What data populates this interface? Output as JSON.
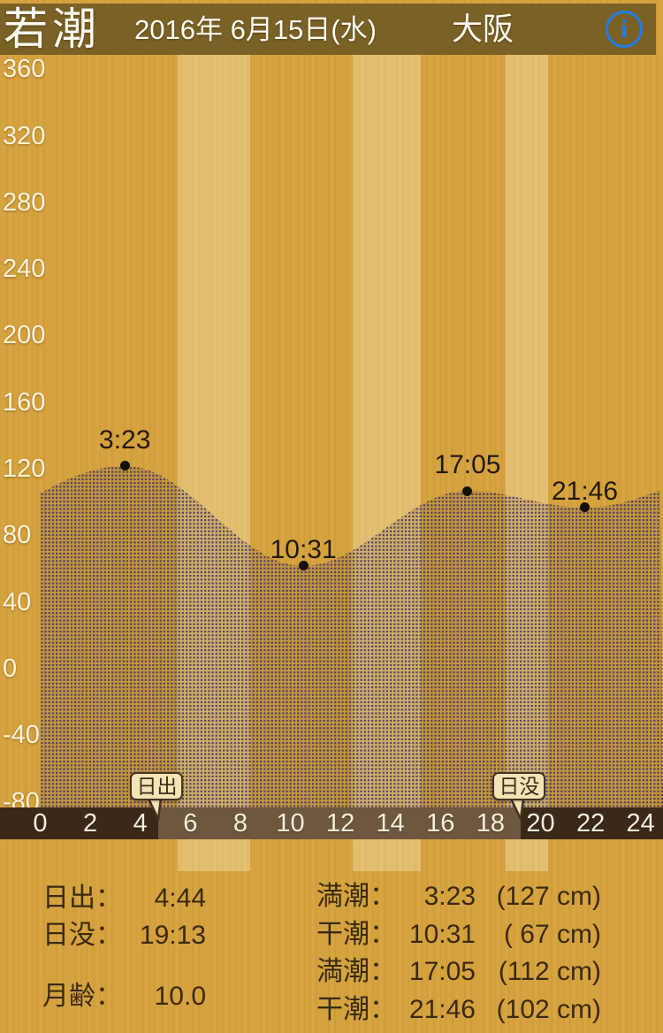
{
  "header": {
    "tide_phase": "若潮",
    "date": "2016年 6月15日(水)",
    "city": "大阪",
    "info_glyph": "i"
  },
  "chart_data": {
    "type": "area",
    "title": "tide level curve (cm) over 24 hours",
    "y_unit": "cm",
    "y_ticks": [
      360,
      320,
      280,
      240,
      200,
      160,
      120,
      80,
      40,
      0,
      -40,
      -80
    ],
    "x_ticks": [
      0,
      2,
      4,
      6,
      8,
      10,
      12,
      14,
      16,
      18,
      20,
      22,
      24
    ],
    "x_range_hours": [
      0,
      24
    ],
    "extremes": [
      {
        "kind": "high",
        "label": "満潮",
        "time": "3:23",
        "hour": 3.383,
        "cm": 127
      },
      {
        "kind": "low",
        "label": "干潮",
        "time": "10:31",
        "hour": 10.517,
        "cm": 67
      },
      {
        "kind": "high",
        "label": "満潮",
        "time": "17:05",
        "hour": 17.083,
        "cm": 112
      },
      {
        "kind": "low",
        "label": "干潮",
        "time": "21:46",
        "hour": 21.767,
        "cm": 102
      }
    ],
    "curve_anchors_est": [
      {
        "hour": -4.5,
        "cm": 85
      },
      {
        "hour": 3.383,
        "cm": 127
      },
      {
        "hour": 10.517,
        "cm": 67
      },
      {
        "hour": 17.083,
        "cm": 112
      },
      {
        "hour": 21.767,
        "cm": 102
      },
      {
        "hour": 28.5,
        "cm": 127
      }
    ],
    "edge_values_est": {
      "hour0_cm": 110,
      "hour24_cm": 108
    },
    "sunrise": {
      "label": "日出",
      "time": "4:44",
      "hour": 4.733
    },
    "sunset": {
      "label": "日没",
      "time": "19:13",
      "hour": 19.217
    },
    "daylight_bands_hours": [
      [
        5.5,
        8.4
      ],
      [
        12.5,
        15.2
      ],
      [
        18.6,
        20.3
      ]
    ],
    "legend": "none",
    "grid": "off"
  },
  "footer": {
    "sun_moon_rows": [
      {
        "label": "日出：",
        "value": "4:44"
      },
      {
        "label": "日没：",
        "value": "19:13"
      },
      {
        "label": "月齢：",
        "value": "10.0"
      }
    ],
    "tide_rows": [
      {
        "label": "満潮：",
        "time": "3:23",
        "height": "(127 cm)"
      },
      {
        "label": "干潮：",
        "time": "10:31",
        "height": "( 67 cm)"
      },
      {
        "label": "満潮：",
        "time": "17:05",
        "height": "(112 cm)"
      },
      {
        "label": "干潮：",
        "time": "21:46",
        "height": "(102 cm)"
      }
    ]
  },
  "colors": {
    "base_gold": "#d5a23e",
    "daylight_band": "#ddbf6f",
    "header_brown": "#7a6126",
    "axis_night_brown": "#3b2817",
    "axis_day_brown": "#6e573e",
    "fill_dot": "#46395a",
    "bubble_bg": "#f4e3b4",
    "bubble_border": "#443321",
    "info_blue": "#1f7ce8",
    "text_light": "#fdfbf2",
    "text_dark": "#3a2a10"
  }
}
